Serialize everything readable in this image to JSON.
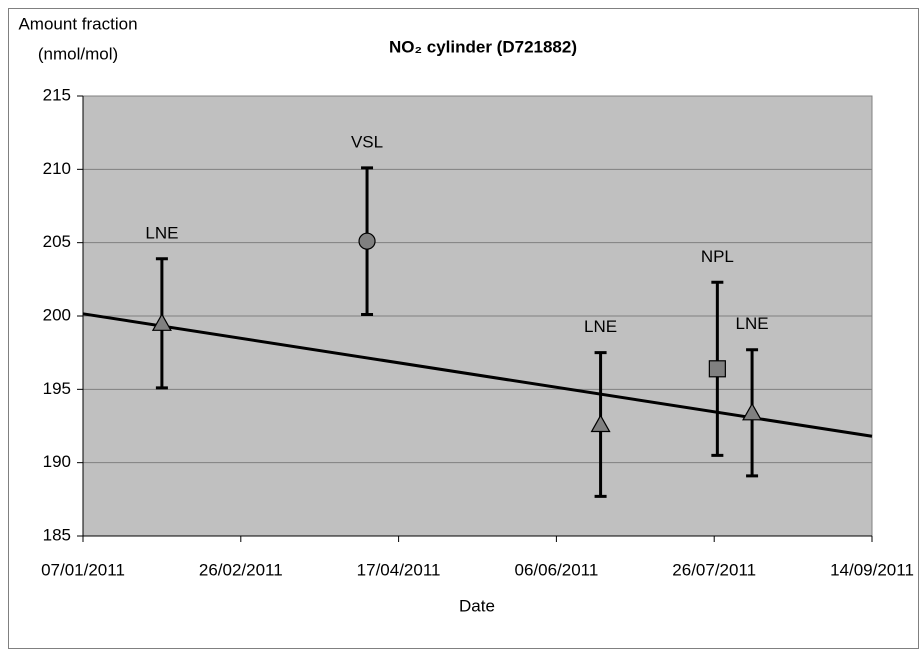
{
  "chart_data": {
    "type": "scatter",
    "title": "NO₂ cylinder (D721882)",
    "y_label": [
      "Amount fraction",
      "(nmol/mol)"
    ],
    "x_label": "Date",
    "points": [
      {
        "label": "LNE",
        "x": "01/02/2011",
        "value": 199.5,
        "error": 4.4,
        "marker": "triangle"
      },
      {
        "label": "VSL",
        "x": "07/04/2011",
        "value": 205.1,
        "error": 5.0,
        "marker": "circle"
      },
      {
        "label": "LNE",
        "x": "20/06/2011",
        "value": 192.6,
        "error": 4.9,
        "marker": "triangle"
      },
      {
        "label": "NPL",
        "x": "27/07/2011",
        "value": 196.4,
        "error": 5.9,
        "marker": "square"
      },
      {
        "label": "LNE",
        "x": "07/08/2011",
        "value": 193.4,
        "error": 4.3,
        "marker": "triangle"
      }
    ],
    "marker_color": "#808080",
    "trend": {
      "x": [
        "07/01/2011",
        "14/09/2011"
      ],
      "values": [
        200.15,
        191.8
      ],
      "color": "#000000"
    },
    "xlim": [
      "07/01/2011",
      "14/09/2011"
    ],
    "xticks": [
      "07/01/2011",
      "26/02/2011",
      "17/04/2011",
      "06/06/2011",
      "26/07/2011",
      "14/09/2011"
    ],
    "ylim": [
      185,
      215
    ],
    "yticks": [
      185,
      190,
      195,
      200,
      205,
      210,
      215
    ],
    "grid": true,
    "plot_background": "#c0c0c0"
  }
}
